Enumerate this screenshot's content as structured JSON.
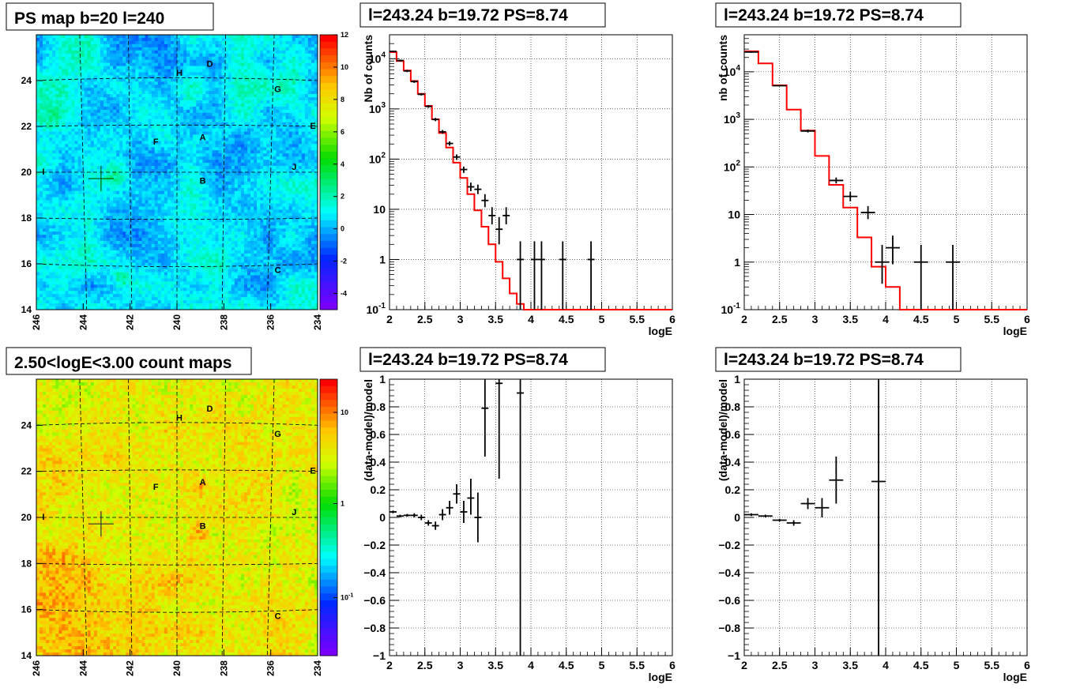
{
  "chart_data": [
    {
      "id": "ps_map",
      "type": "heatmap",
      "title": "PS map b=20 l=240",
      "x_ticks": [
        "246",
        "244",
        "242",
        "240",
        "238",
        "236",
        "234"
      ],
      "y_ticks": [
        "14",
        "16",
        "18",
        "20",
        "22",
        "24"
      ],
      "xlim": [
        246,
        234
      ],
      "ylim": [
        14,
        26
      ],
      "colorbar_ticks": [
        "12",
        "10",
        "8",
        "6",
        "4",
        "2",
        "0",
        "-2",
        "-4"
      ],
      "color_range": [
        -5,
        12
      ],
      "source_labels": [
        {
          "name": "D",
          "l": 238.6,
          "b": 24.6
        },
        {
          "name": "H",
          "l": 239.9,
          "b": 24.2
        },
        {
          "name": "G",
          "l": 235.7,
          "b": 23.5
        },
        {
          "name": "E",
          "l": 234.2,
          "b": 21.9
        },
        {
          "name": "A",
          "l": 238.9,
          "b": 21.4
        },
        {
          "name": "F",
          "l": 240.9,
          "b": 21.2
        },
        {
          "name": "I",
          "l": 245.7,
          "b": 19.9
        },
        {
          "name": "J",
          "l": 235.0,
          "b": 20.1
        },
        {
          "name": "B",
          "l": 238.9,
          "b": 19.5
        },
        {
          "name": "C",
          "l": 235.7,
          "b": 15.6
        }
      ],
      "marker": {
        "l": 243.24,
        "b": 19.72
      }
    },
    {
      "id": "spectrum_1",
      "type": "line",
      "title": "l=243.24 b=19.72 PS=8.74",
      "xlabel": "logE",
      "ylabel": "Nb of counts",
      "log_y": true,
      "xlim": [
        2,
        6
      ],
      "ylim": [
        0.1,
        30000
      ],
      "x_ticks": [
        "2",
        "2.5",
        "3",
        "3.5",
        "4",
        "4.5",
        "5",
        "5.5",
        "6"
      ],
      "y_ticks": [
        "10^-1",
        "1",
        "10",
        "10^2",
        "10^3",
        "10^4"
      ],
      "model_edges": [
        2.0,
        2.1,
        2.2,
        2.3,
        2.4,
        2.5,
        2.6,
        2.7,
        2.8,
        2.9,
        3.0,
        3.1,
        3.2,
        3.3,
        3.4,
        3.5,
        3.6,
        3.7,
        3.8,
        3.9,
        4.0,
        4.1,
        4.2,
        6.0
      ],
      "model_values": [
        13500,
        9000,
        5800,
        3600,
        2000,
        1150,
        620,
        330,
        170,
        85,
        42,
        20,
        9.5,
        4.5,
        2.0,
        0.9,
        0.42,
        0.21,
        0.13,
        0.1,
        0.1,
        0.1,
        0.1
      ],
      "data_points": [
        {
          "x": 2.05,
          "y": 14000,
          "xerr": 0.05,
          "ylo": 13500,
          "yhi": 14500
        },
        {
          "x": 2.15,
          "y": 9200,
          "xerr": 0.05,
          "ylo": 8800,
          "yhi": 9600
        },
        {
          "x": 2.25,
          "y": 5700,
          "xerr": 0.05,
          "ylo": 5400,
          "yhi": 6000
        },
        {
          "x": 2.35,
          "y": 3500,
          "xerr": 0.05,
          "ylo": 3300,
          "yhi": 3700
        },
        {
          "x": 2.45,
          "y": 1950,
          "xerr": 0.05,
          "ylo": 1850,
          "yhi": 2050
        },
        {
          "x": 2.55,
          "y": 1120,
          "xerr": 0.05,
          "ylo": 1050,
          "yhi": 1190
        },
        {
          "x": 2.65,
          "y": 615,
          "xerr": 0.05,
          "ylo": 570,
          "yhi": 660
        },
        {
          "x": 2.75,
          "y": 350,
          "xerr": 0.05,
          "ylo": 320,
          "yhi": 380
        },
        {
          "x": 2.85,
          "y": 205,
          "xerr": 0.05,
          "ylo": 185,
          "yhi": 225
        },
        {
          "x": 2.95,
          "y": 110,
          "xerr": 0.05,
          "ylo": 96,
          "yhi": 124
        },
        {
          "x": 3.05,
          "y": 62,
          "xerr": 0.05,
          "ylo": 53,
          "yhi": 71
        },
        {
          "x": 3.15,
          "y": 28,
          "xerr": 0.05,
          "ylo": 23,
          "yhi": 34
        },
        {
          "x": 3.25,
          "y": 25,
          "xerr": 0.05,
          "ylo": 20,
          "yhi": 31
        },
        {
          "x": 3.35,
          "y": 15,
          "xerr": 0.05,
          "ylo": 11,
          "yhi": 20
        },
        {
          "x": 3.45,
          "y": 7.5,
          "xerr": 0.05,
          "ylo": 5,
          "yhi": 11
        },
        {
          "x": 3.55,
          "y": 4,
          "xerr": 0.05,
          "ylo": 2,
          "yhi": 7
        },
        {
          "x": 3.65,
          "y": 7.5,
          "xerr": 0.05,
          "ylo": 5,
          "yhi": 11
        },
        {
          "x": 3.85,
          "y": 1,
          "xerr": 0.05,
          "ylo": 0.1,
          "yhi": 2.3
        },
        {
          "x": 4.05,
          "y": 1,
          "xerr": 0.05,
          "ylo": 0.1,
          "yhi": 2.3
        },
        {
          "x": 4.15,
          "y": 1,
          "xerr": 0.05,
          "ylo": 0.1,
          "yhi": 2.3
        },
        {
          "x": 4.45,
          "y": 1,
          "xerr": 0.05,
          "ylo": 0.1,
          "yhi": 2.3
        },
        {
          "x": 4.85,
          "y": 1,
          "xerr": 0.05,
          "ylo": 0.1,
          "yhi": 2.3
        }
      ]
    },
    {
      "id": "spectrum_2",
      "type": "line",
      "title": "l=243.24 b=19.72 PS=8.74",
      "xlabel": "logE",
      "ylabel": "nb of counts",
      "log_y": true,
      "xlim": [
        2,
        6
      ],
      "ylim": [
        0.1,
        60000
      ],
      "x_ticks": [
        "2",
        "2.5",
        "3",
        "3.5",
        "4",
        "4.5",
        "5",
        "5.5",
        "6"
      ],
      "y_ticks": [
        "10^-1",
        "1",
        "10",
        "10^2",
        "10^3",
        "10^4"
      ],
      "model_edges": [
        2.0,
        2.2,
        2.4,
        2.6,
        2.8,
        3.0,
        3.2,
        3.4,
        3.6,
        3.8,
        4.0,
        4.2,
        6.0
      ],
      "model_values": [
        27000,
        15000,
        5200,
        1600,
        580,
        170,
        42,
        14,
        3.3,
        0.8,
        0.3,
        0.1
      ],
      "data_points": [
        {
          "x": 2.1,
          "y": 26000,
          "xerr": 0.1,
          "ylo": 25000,
          "yhi": 27000
        },
        {
          "x": 2.5,
          "y": 5100,
          "xerr": 0.1,
          "ylo": 4900,
          "yhi": 5300
        },
        {
          "x": 2.9,
          "y": 570,
          "xerr": 0.1,
          "ylo": 530,
          "yhi": 610
        },
        {
          "x": 3.3,
          "y": 52,
          "xerr": 0.1,
          "ylo": 45,
          "yhi": 60
        },
        {
          "x": 3.5,
          "y": 24,
          "xerr": 0.1,
          "ylo": 19,
          "yhi": 30
        },
        {
          "x": 3.75,
          "y": 11,
          "xerr": 0.1,
          "ylo": 8,
          "yhi": 15
        },
        {
          "x": 3.95,
          "y": 1,
          "xerr": 0.1,
          "ylo": 0.35,
          "yhi": 2.3
        },
        {
          "x": 4.1,
          "y": 2,
          "xerr": 0.1,
          "ylo": 0.9,
          "yhi": 3.6
        },
        {
          "x": 4.5,
          "y": 1,
          "xerr": 0.1,
          "ylo": 0.1,
          "yhi": 2.3
        },
        {
          "x": 4.95,
          "y": 1,
          "xerr": 0.1,
          "ylo": 0.1,
          "yhi": 2.3
        }
      ]
    },
    {
      "id": "count_map",
      "type": "heatmap",
      "title": "2.50<logE<3.00 count maps",
      "x_ticks": [
        "246",
        "244",
        "242",
        "240",
        "238",
        "236",
        "234"
      ],
      "y_ticks": [
        "14",
        "16",
        "18",
        "20",
        "22",
        "24"
      ],
      "xlim": [
        246,
        234
      ],
      "ylim": [
        14,
        26
      ],
      "colorbar_ticks": [
        "10",
        "1",
        "10^-1"
      ],
      "log_color": true,
      "source_labels": [
        {
          "name": "D",
          "l": 238.6,
          "b": 24.6
        },
        {
          "name": "H",
          "l": 239.9,
          "b": 24.2
        },
        {
          "name": "G",
          "l": 235.7,
          "b": 23.5
        },
        {
          "name": "E",
          "l": 234.2,
          "b": 21.9
        },
        {
          "name": "A",
          "l": 238.9,
          "b": 21.4
        },
        {
          "name": "F",
          "l": 240.9,
          "b": 21.2
        },
        {
          "name": "I",
          "l": 245.7,
          "b": 19.9
        },
        {
          "name": "J",
          "l": 235.0,
          "b": 20.1
        },
        {
          "name": "B",
          "l": 238.9,
          "b": 19.5
        },
        {
          "name": "C",
          "l": 235.7,
          "b": 15.6
        }
      ],
      "marker": {
        "l": 243.24,
        "b": 19.72
      }
    },
    {
      "id": "residual_1",
      "type": "scatter",
      "title": "l=243.24 b=19.72 PS=8.74",
      "xlabel": "logE",
      "ylabel": "(data-model)/model",
      "xlim": [
        2,
        6
      ],
      "ylim": [
        -1,
        1
      ],
      "x_ticks": [
        "2",
        "2.5",
        "3",
        "3.5",
        "4",
        "4.5",
        "5",
        "5.5",
        "6"
      ],
      "y_ticks": [
        "-1",
        "-0.8",
        "-0.6",
        "-0.4",
        "-0.2",
        "0",
        "0.2",
        "0.4",
        "0.6",
        "0.8",
        "1"
      ],
      "data_points": [
        {
          "x": 2.05,
          "y": 0.04,
          "xerr": 0.05,
          "ylo": 0.03,
          "yhi": 0.05
        },
        {
          "x": 2.15,
          "y": 0.01,
          "xerr": 0.05,
          "ylo": 0.0,
          "yhi": 0.02
        },
        {
          "x": 2.25,
          "y": 0.015,
          "xerr": 0.05,
          "ylo": 0.005,
          "yhi": 0.025
        },
        {
          "x": 2.35,
          "y": 0.015,
          "xerr": 0.05,
          "ylo": 0.0,
          "yhi": 0.03
        },
        {
          "x": 2.45,
          "y": 0.0,
          "xerr": 0.05,
          "ylo": -0.02,
          "yhi": 0.02
        },
        {
          "x": 2.55,
          "y": -0.04,
          "xerr": 0.05,
          "ylo": -0.06,
          "yhi": -0.02
        },
        {
          "x": 2.65,
          "y": -0.06,
          "xerr": 0.05,
          "ylo": -0.09,
          "yhi": -0.03
        },
        {
          "x": 2.75,
          "y": 0.02,
          "xerr": 0.05,
          "ylo": -0.02,
          "yhi": 0.06
        },
        {
          "x": 2.85,
          "y": 0.07,
          "xerr": 0.05,
          "ylo": 0.02,
          "yhi": 0.12
        },
        {
          "x": 2.95,
          "y": 0.17,
          "xerr": 0.05,
          "ylo": 0.1,
          "yhi": 0.24
        },
        {
          "x": 3.05,
          "y": 0.04,
          "xerr": 0.05,
          "ylo": -0.04,
          "yhi": 0.12
        },
        {
          "x": 3.15,
          "y": 0.14,
          "xerr": 0.05,
          "ylo": 0.02,
          "yhi": 0.28
        },
        {
          "x": 3.25,
          "y": 0.0,
          "xerr": 0.05,
          "ylo": -0.18,
          "yhi": 0.18
        },
        {
          "x": 3.35,
          "y": 0.79,
          "xerr": 0.05,
          "ylo": 0.44,
          "yhi": 1.0
        },
        {
          "x": 3.55,
          "y": 0.97,
          "xerr": 0.05,
          "ylo": 0.28,
          "yhi": 1.0
        },
        {
          "x": 3.85,
          "y": 0.9,
          "xerr": 0.05,
          "ylo": -1.0,
          "yhi": 1.0
        }
      ]
    },
    {
      "id": "residual_2",
      "type": "scatter",
      "title": "l=243.24 b=19.72 PS=8.74",
      "xlabel": "logE",
      "ylabel": "(data-model)/model",
      "xlim": [
        2,
        6
      ],
      "ylim": [
        -1,
        1
      ],
      "x_ticks": [
        "2",
        "2.5",
        "3",
        "3.5",
        "4",
        "4.5",
        "5",
        "5.5",
        "6"
      ],
      "y_ticks": [
        "-1",
        "-0.8",
        "-0.6",
        "-0.4",
        "-0.2",
        "0",
        "0.2",
        "0.4",
        "0.6",
        "0.8",
        "1"
      ],
      "data_points": [
        {
          "x": 2.1,
          "y": 0.02,
          "xerr": 0.1,
          "ylo": 0.01,
          "yhi": 0.03
        },
        {
          "x": 2.3,
          "y": 0.01,
          "xerr": 0.1,
          "ylo": 0.0,
          "yhi": 0.02
        },
        {
          "x": 2.5,
          "y": -0.02,
          "xerr": 0.1,
          "ylo": -0.03,
          "yhi": -0.01
        },
        {
          "x": 2.7,
          "y": -0.04,
          "xerr": 0.1,
          "ylo": -0.06,
          "yhi": -0.02
        },
        {
          "x": 2.9,
          "y": 0.1,
          "xerr": 0.1,
          "ylo": 0.06,
          "yhi": 0.14
        },
        {
          "x": 3.1,
          "y": 0.07,
          "xerr": 0.1,
          "ylo": 0.0,
          "yhi": 0.14
        },
        {
          "x": 3.3,
          "y": 0.27,
          "xerr": 0.1,
          "ylo": 0.1,
          "yhi": 0.44
        },
        {
          "x": 3.9,
          "y": 0.26,
          "xerr": 0.1,
          "ylo": -1.0,
          "yhi": 1.0
        }
      ]
    }
  ]
}
